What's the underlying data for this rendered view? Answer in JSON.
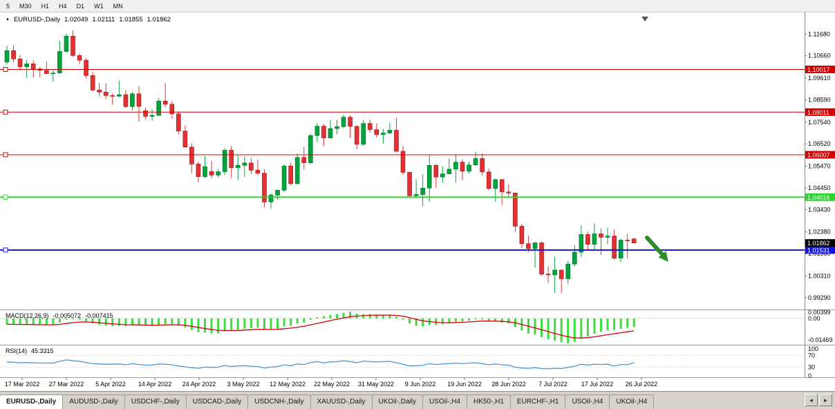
{
  "toolbar": {
    "timeframes": [
      "5",
      "M30",
      "H1",
      "H4",
      "D1",
      "W1",
      "MN"
    ]
  },
  "chart": {
    "title": {
      "symbol": "EURUSD-,Daily",
      "open": "1.02049",
      "high": "1.02111",
      "low": "1.01855",
      "close": "1.01862"
    },
    "y_axis_labels": [
      "1.11680",
      "1.10660",
      "1.09610",
      "1.08590",
      "1.07540",
      "1.06520",
      "1.05470",
      "1.04450",
      "1.03430",
      "1.02380",
      "1.01360",
      "1.00310",
      "0.99290"
    ],
    "hlines": [
      {
        "price": 1.10017,
        "label": "1.10017",
        "color": "#d20000",
        "width": 1
      },
      {
        "price": 1.08011,
        "label": "1.08011",
        "color": "#d20000",
        "width": 1
      },
      {
        "price": 1.06007,
        "label": "1.06007",
        "color": "#d20000",
        "width": 1
      },
      {
        "price": 1.04016,
        "label": "1.04016",
        "color": "#2fd32f",
        "width": 2
      },
      {
        "price": 1.01531,
        "label": "1.01531",
        "color": "#1414e0",
        "width": 2
      }
    ],
    "current_price": {
      "price": 1.01862,
      "label": "1.01862",
      "color": "#000000"
    },
    "annotation_arrow": {
      "color": "#2e8b2e"
    }
  },
  "chart_data": {
    "type": "candlestick",
    "title": "EURUSD-,Daily",
    "ylim": [
      0.988,
      1.125
    ],
    "up_color": "#00a33c",
    "down_color": "#e03232",
    "x_labels": [
      "17 Mar 2022",
      "27 Mar 2022",
      "5 Apr 2022",
      "14 Apr 2022",
      "24 Apr 2022",
      "3 May 2022",
      "12 May 2022",
      "22 May 2022",
      "31 May 2022",
      "9 Jun 2022",
      "19 Jun 2022",
      "28 Jun 2022",
      "7 Jul 2022",
      "17 Jul 2022",
      "26 Jul 2022"
    ],
    "candles": [
      [
        1.1036,
        1.1112,
        1.1025,
        1.109
      ],
      [
        1.109,
        1.1116,
        1.1036,
        1.1051
      ],
      [
        1.1051,
        1.1069,
        1.0999,
        1.1014
      ],
      [
        1.1014,
        1.1046,
        1.0961,
        1.1028
      ],
      [
        1.1028,
        1.1044,
        1.0963,
        1.1004
      ],
      [
        1.1004,
        1.1014,
        1.0962,
        1.0997
      ],
      [
        1.0997,
        1.1039,
        1.0979,
        1.0982
      ],
      [
        1.0982,
        1.0999,
        1.0944,
        1.0985
      ],
      [
        1.0985,
        1.1137,
        1.0982,
        1.1086
      ],
      [
        1.1086,
        1.1171,
        1.1083,
        1.1158
      ],
      [
        1.1158,
        1.1185,
        1.1061,
        1.1067
      ],
      [
        1.1067,
        1.1077,
        1.1027,
        1.1045
      ],
      [
        1.1045,
        1.1055,
        1.096,
        1.0973
      ],
      [
        1.0973,
        1.099,
        1.0898,
        1.0905
      ],
      [
        1.0905,
        1.0939,
        1.0874,
        1.0895
      ],
      [
        1.0895,
        1.0937,
        1.0864,
        1.0879
      ],
      [
        1.0879,
        1.089,
        1.0836,
        1.0876
      ],
      [
        1.0876,
        1.095,
        1.0872,
        1.0883
      ],
      [
        1.0883,
        1.0904,
        1.0821,
        1.0827
      ],
      [
        1.0827,
        1.0896,
        1.0809,
        1.0887
      ],
      [
        1.0887,
        1.0924,
        1.0757,
        1.0828
      ],
      [
        1.0808,
        1.0822,
        1.0769,
        1.0781
      ],
      [
        1.0781,
        1.0815,
        1.0761,
        1.0786
      ],
      [
        1.0786,
        1.0867,
        1.0783,
        1.0853
      ],
      [
        1.0853,
        1.0937,
        1.0824,
        1.0838
      ],
      [
        1.0838,
        1.0852,
        1.077,
        1.0793
      ],
      [
        1.0793,
        1.0805,
        1.0697,
        1.0712
      ],
      [
        1.0712,
        1.0738,
        1.0635,
        1.0637
      ],
      [
        1.0637,
        1.0655,
        1.0514,
        1.0557
      ],
      [
        1.0557,
        1.0567,
        1.0471,
        1.0498
      ],
      [
        1.0498,
        1.0593,
        1.0492,
        1.0545
      ],
      [
        1.0522,
        1.0572,
        1.049,
        1.0505
      ],
      [
        1.0505,
        1.0533,
        1.0494,
        1.0521
      ],
      [
        1.0521,
        1.0632,
        1.0506,
        1.0622
      ],
      [
        1.0622,
        1.0642,
        1.0492,
        1.054
      ],
      [
        1.054,
        1.0599,
        1.0483,
        1.0551
      ],
      [
        1.0551,
        1.0593,
        1.0495,
        1.0562
      ],
      [
        1.0562,
        1.0585,
        1.0509,
        1.0528
      ],
      [
        1.0528,
        1.0578,
        1.0503,
        1.0514
      ],
      [
        1.0514,
        1.0532,
        1.0354,
        1.0379
      ],
      [
        1.0379,
        1.0419,
        1.0348,
        1.0411
      ],
      [
        1.0411,
        1.0438,
        1.0389,
        1.0434
      ],
      [
        1.0434,
        1.0557,
        1.0424,
        1.0548
      ],
      [
        1.0548,
        1.0564,
        1.0458,
        1.0465
      ],
      [
        1.0465,
        1.0607,
        1.0461,
        1.0588
      ],
      [
        1.0588,
        1.0637,
        1.0532,
        1.0563
      ],
      [
        1.0563,
        1.0697,
        1.0556,
        1.0691
      ],
      [
        1.0691,
        1.0748,
        1.0661,
        1.0735
      ],
      [
        1.0735,
        1.0744,
        1.0641,
        1.068
      ],
      [
        1.068,
        1.0765,
        1.0676,
        1.0724
      ],
      [
        1.0724,
        1.0765,
        1.0697,
        1.0733
      ],
      [
        1.0733,
        1.0787,
        1.0726,
        1.0777
      ],
      [
        1.0777,
        1.0786,
        1.0678,
        1.0734
      ],
      [
        1.0734,
        1.0739,
        1.0627,
        1.065
      ],
      [
        1.065,
        1.0764,
        1.0641,
        1.0748
      ],
      [
        1.0748,
        1.0766,
        1.0704,
        1.0719
      ],
      [
        1.0719,
        1.0748,
        1.0682,
        1.0695
      ],
      [
        1.0695,
        1.0722,
        1.0653,
        1.0703
      ],
      [
        1.0703,
        1.0749,
        1.0697,
        1.0716
      ],
      [
        1.0716,
        1.0774,
        1.0612,
        1.0617
      ],
      [
        1.0617,
        1.0643,
        1.0506,
        1.0518
      ],
      [
        1.0518,
        1.0521,
        1.0399,
        1.0408
      ],
      [
        1.0408,
        1.0485,
        1.0397,
        1.0414
      ],
      [
        1.0414,
        1.0508,
        1.0359,
        1.0444
      ],
      [
        1.0444,
        1.0601,
        1.0381,
        1.0551
      ],
      [
        1.0551,
        1.0557,
        1.0444,
        1.0496
      ],
      [
        1.0496,
        1.0546,
        1.0469,
        1.0511
      ],
      [
        1.0511,
        1.0582,
        1.0509,
        1.0533
      ],
      [
        1.0533,
        1.0605,
        1.0469,
        1.0566
      ],
      [
        1.0566,
        1.058,
        1.0482,
        1.0523
      ],
      [
        1.0523,
        1.0568,
        1.0513,
        1.0553
      ],
      [
        1.0553,
        1.0615,
        1.0547,
        1.0583
      ],
      [
        1.0583,
        1.0606,
        1.0503,
        1.052
      ],
      [
        1.052,
        1.0536,
        1.0434,
        1.0442
      ],
      [
        1.0442,
        1.0489,
        1.0381,
        1.0484
      ],
      [
        1.0484,
        1.0486,
        1.0365,
        1.0426
      ],
      [
        1.0426,
        1.0463,
        1.0405,
        1.0421
      ],
      [
        1.0421,
        1.0422,
        1.0235,
        1.0265
      ],
      [
        1.0265,
        1.0276,
        1.0162,
        1.0183
      ],
      [
        1.0183,
        1.0221,
        1.0144,
        1.016
      ],
      [
        1.016,
        1.0192,
        1.0071,
        1.0187
      ],
      [
        1.0187,
        1.0193,
        1.0032,
        1.004
      ],
      [
        1.004,
        1.0075,
        0.9998,
        1.0036
      ],
      [
        1.0036,
        1.0122,
        0.9952,
        1.0059
      ],
      [
        1.0059,
        1.006,
        0.995,
        1.0018
      ],
      [
        1.0018,
        1.0103,
        0.9994,
        1.0087
      ],
      [
        1.0087,
        1.0176,
        1.0075,
        1.0143
      ],
      [
        1.0143,
        1.0269,
        1.0121,
        1.0226
      ],
      [
        1.0226,
        1.024,
        1.0155,
        1.018
      ],
      [
        1.018,
        1.0278,
        1.0153,
        1.0229
      ],
      [
        1.0229,
        1.0254,
        1.013,
        1.0213
      ],
      [
        1.0213,
        1.0257,
        1.018,
        1.0219
      ],
      [
        1.0219,
        1.025,
        1.0108,
        1.0115
      ],
      [
        1.0115,
        1.0206,
        1.0097,
        1.0199
      ],
      [
        1.0199,
        1.023,
        1.0113,
        1.0196
      ],
      [
        1.02049,
        1.02111,
        1.01855,
        1.01862
      ]
    ]
  },
  "indicators": {
    "macd": {
      "label": "MACD(12,26,9)",
      "value": "-0.005072",
      "signal_value": "-0.007415",
      "axis_labels": [
        "0.00399",
        "0.00",
        "-0.01469"
      ],
      "range": [
        -0.0147,
        0.004
      ],
      "histogram_color": "#3ddc3d",
      "signal_color": "#d20000",
      "values": [
        -0.0035,
        -0.0036,
        -0.0038,
        -0.0037,
        -0.0038,
        -0.0039,
        -0.004,
        -0.0039,
        -0.0025,
        -0.0008,
        -0.0005,
        -0.0008,
        -0.0018,
        -0.003,
        -0.0038,
        -0.0043,
        -0.0046,
        -0.0044,
        -0.0046,
        -0.0041,
        -0.004,
        -0.0044,
        -0.0044,
        -0.0038,
        -0.0033,
        -0.0033,
        -0.0041,
        -0.0053,
        -0.0068,
        -0.0081,
        -0.0084,
        -0.0089,
        -0.0089,
        -0.0077,
        -0.0073,
        -0.0067,
        -0.006,
        -0.0057,
        -0.0055,
        -0.0068,
        -0.0067,
        -0.0061,
        -0.0047,
        -0.0043,
        -0.003,
        -0.0024,
        -0.0008,
        0.0007,
        0.0012,
        0.002,
        0.0026,
        0.0033,
        0.004,
        0.0028,
        0.0025,
        0.0026,
        0.0023,
        0.0021,
        0.0021,
        0.001,
        -0.0008,
        -0.003,
        -0.0044,
        -0.0048,
        -0.004,
        -0.0039,
        -0.0034,
        -0.0027,
        -0.0019,
        -0.0018,
        -0.0013,
        -0.0006,
        -0.0007,
        -0.0016,
        -0.0017,
        -0.0025,
        -0.003,
        -0.0051,
        -0.0072,
        -0.0089,
        -0.0095,
        -0.011,
        -0.0123,
        -0.0131,
        -0.014,
        -0.0147,
        -0.0138,
        -0.012,
        -0.0105,
        -0.0089,
        -0.0078,
        -0.0069,
        -0.0068,
        -0.0062,
        -0.0056,
        -0.00507
      ]
    },
    "rsi": {
      "label": "RSI(14)",
      "value": "45.3315",
      "axis_labels": [
        "100",
        "70",
        "30",
        "0"
      ],
      "levels": [
        70,
        30
      ],
      "line_color": "#4f94cd",
      "values": [
        48,
        47,
        45,
        46,
        45,
        44,
        44,
        44,
        50,
        55,
        52,
        50,
        46,
        42,
        41,
        40,
        40,
        41,
        38,
        42,
        39,
        37,
        37,
        41,
        40,
        38,
        34,
        31,
        28,
        26,
        30,
        29,
        30,
        36,
        32,
        34,
        35,
        33,
        32,
        27,
        30,
        32,
        38,
        35,
        41,
        39,
        46,
        49,
        45,
        48,
        49,
        52,
        49,
        45,
        51,
        49,
        48,
        49,
        50,
        45,
        40,
        34,
        35,
        36,
        42,
        39,
        41,
        42,
        44,
        42,
        44,
        45,
        42,
        38,
        41,
        38,
        37,
        30,
        27,
        26,
        28,
        25,
        24,
        26,
        25,
        29,
        33,
        40,
        37,
        40,
        39,
        40,
        34,
        39,
        38,
        45.33
      ]
    }
  },
  "tabs": {
    "scroll_left": "◄",
    "scroll_right": "►",
    "items": [
      {
        "label": "EURUSD-,Daily",
        "active": true
      },
      {
        "label": "AUDUSD-,Daily",
        "active": false
      },
      {
        "label": "USDCHF-,Daily",
        "active": false
      },
      {
        "label": "USDCAD-,Daily",
        "active": false
      },
      {
        "label": "USDCNH-,Daily",
        "active": false
      },
      {
        "label": "XAUUSD-,Daily",
        "active": false
      },
      {
        "label": "UKOil-,Daily",
        "active": false
      },
      {
        "label": "USOil-,H4",
        "active": false
      },
      {
        "label": "HK50-,H1",
        "active": false
      },
      {
        "label": "EURCHF-,H1",
        "active": false
      },
      {
        "label": "USOil-,H4",
        "active": false
      },
      {
        "label": "UKOil-,H4",
        "active": false
      }
    ]
  }
}
